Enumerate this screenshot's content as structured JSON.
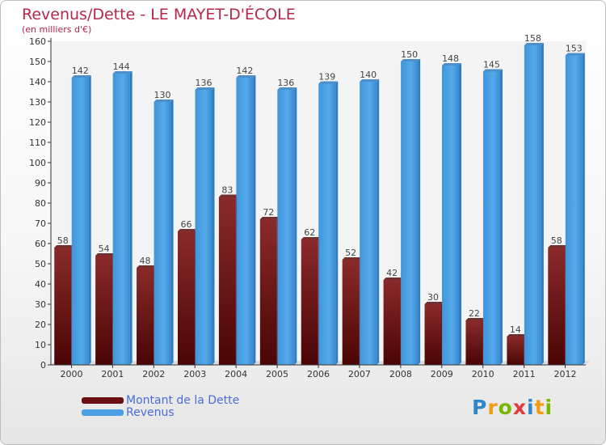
{
  "chart_data": {
    "type": "bar",
    "title": "Revenus/Dette - LE MAYET-D'ÉCOLE",
    "subtitle": "(en milliers d'€)",
    "categories": [
      "2000",
      "2001",
      "2002",
      "2003",
      "2004",
      "2005",
      "2006",
      "2007",
      "2008",
      "2009",
      "2010",
      "2011",
      "2012"
    ],
    "series": [
      {
        "name": "Montant de la Dette",
        "color": "#7a1616",
        "values": [
          58,
          54,
          48,
          66,
          83,
          72,
          62,
          52,
          42,
          30,
          22,
          14,
          58
        ]
      },
      {
        "name": "Revenus",
        "color": "#4aa0e2",
        "values": [
          142,
          144,
          130,
          136,
          142,
          136,
          139,
          140,
          150,
          148,
          145,
          158,
          153
        ]
      }
    ],
    "ylim": [
      0,
      160
    ],
    "ytick_step": 10,
    "grid": false,
    "legend_position": "bottom-left"
  },
  "brand": {
    "letters": [
      "P",
      "r",
      "o",
      "x",
      "i",
      "t",
      "i"
    ],
    "colors": [
      "#2f86c8",
      "#f39c12",
      "#7ab800",
      "#e03a3a",
      "#2f86c8",
      "#f39c12",
      "#7ab800"
    ]
  }
}
